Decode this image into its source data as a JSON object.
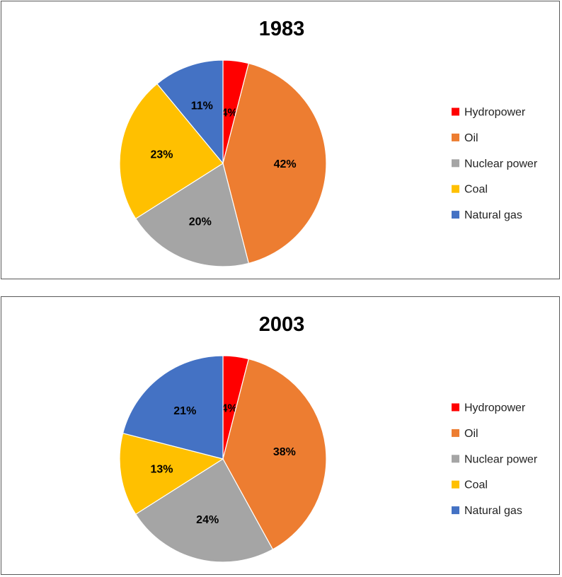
{
  "chart_data": [
    {
      "type": "pie",
      "title": "1983",
      "categories": [
        "Hydropower",
        "Oil",
        "Nuclear power",
        "Coal",
        "Natural gas"
      ],
      "values": [
        4,
        42,
        20,
        23,
        11
      ],
      "labels": [
        "4%",
        "42%",
        "20%",
        "23%",
        "11%"
      ],
      "colors": [
        "#FF0000",
        "#ED7D31",
        "#A5A5A5",
        "#FFC000",
        "#4472C4"
      ],
      "legend": "right"
    },
    {
      "type": "pie",
      "title": "2003",
      "categories": [
        "Hydropower",
        "Oil",
        "Nuclear power",
        "Coal",
        "Natural gas"
      ],
      "values": [
        4,
        38,
        24,
        13,
        21
      ],
      "labels": [
        "4%",
        "38%",
        "24%",
        "13%",
        "21%"
      ],
      "colors": [
        "#FF0000",
        "#ED7D31",
        "#A5A5A5",
        "#FFC000",
        "#4472C4"
      ],
      "legend": "right"
    }
  ]
}
